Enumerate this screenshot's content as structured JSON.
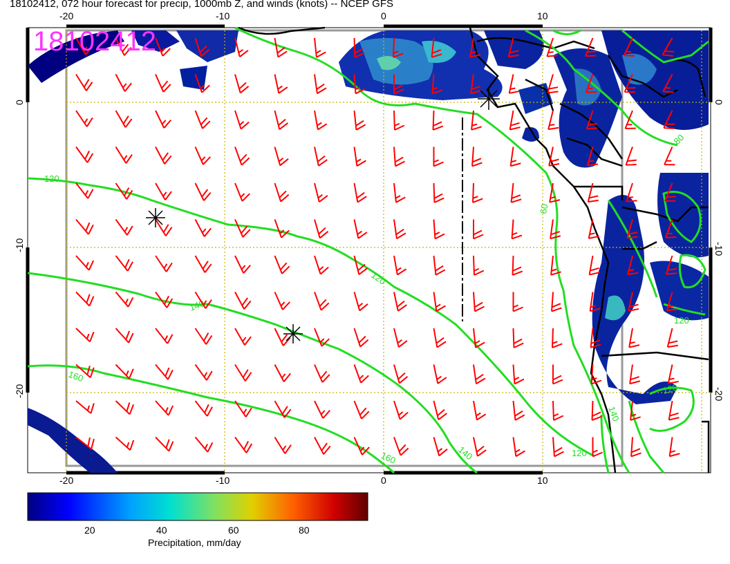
{
  "title": "18102412, 072 hour forecast for precip, 1000mb Z, and winds (knots) -- NCEP GFS",
  "stamp": "18102412",
  "axes": {
    "top_ticks": [
      "-20",
      "-10",
      "0",
      "10"
    ],
    "bottom_ticks": [
      "-20",
      "-10",
      "0",
      "10"
    ],
    "left_ticks": [
      "0",
      "-10",
      "-20"
    ],
    "right_ticks": [
      "0",
      "-10",
      "-20"
    ]
  },
  "contour_labels": [
    "120",
    "120",
    "140",
    "160",
    "160",
    "140",
    "120",
    "120",
    "80",
    "60",
    "120",
    "140"
  ],
  "colorbar": {
    "ticks": [
      "20",
      "40",
      "60",
      "80"
    ],
    "title": "Precipitation, mm/day"
  },
  "colors": {
    "contour": "#22dd22",
    "barb": "#ff0000",
    "stamp": "#ff33ff",
    "land_border": "#000000",
    "precip_deep": "#000080"
  }
}
